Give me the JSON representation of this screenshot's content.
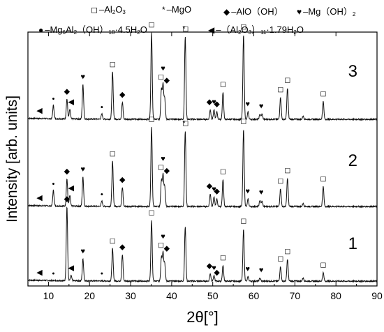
{
  "legend": {
    "al2o3": {
      "symbol": "◻",
      "text_a": "–Al",
      "sub_a": "2",
      "text_b": "O",
      "sub_b": "3"
    },
    "mgo": {
      "symbol": "*",
      "text": "–MgO"
    },
    "alooh": {
      "symbol": "◆",
      "text": "–AlO（OH）"
    },
    "mgoh2": {
      "symbol": "♥",
      "text": "–Mg（OH）",
      "sub": "2"
    },
    "ldh": {
      "symbol": "●",
      "text_a": "–Mg",
      "sub_a": "6",
      "text_b": "Al",
      "sub_b": "2",
      "text_c": "（OH）",
      "sub_c": "18",
      "text_d": "·4.5H",
      "sub_d": "2",
      "text_e": "O"
    },
    "beta_alumina": {
      "symbol": "◀",
      "text_a": "–（Al",
      "sub_a": "2",
      "text_b": "O",
      "sub_b": "3",
      "text_c": "）",
      "sub_c": "11",
      "text_d": "·1.79H",
      "sub_d": "2",
      "text_e": "O"
    }
  },
  "chart_data": {
    "type": "line",
    "xlabel": "2θ[°]",
    "ylabel": "Intensity [arb. units]",
    "xlim": [
      5,
      90
    ],
    "xticks": [
      10,
      20,
      30,
      40,
      50,
      60,
      70,
      80,
      90
    ],
    "tick_labels": [
      "10",
      "20",
      "30",
      "40",
      "50",
      "60",
      "70",
      "80",
      "90"
    ],
    "series": [
      {
        "name": "3",
        "peaks": [
          [
            11.2,
            0.13
          ],
          [
            14.5,
            0.19
          ],
          [
            15.2,
            0.09
          ],
          [
            18.4,
            0.33
          ],
          [
            23.0,
            0.05
          ],
          [
            25.6,
            0.45
          ],
          [
            28.0,
            0.16
          ],
          [
            35.1,
            0.83
          ],
          [
            37.5,
            0.29
          ],
          [
            37.9,
            0.33
          ],
          [
            38.3,
            0.2
          ],
          [
            43.3,
            0.79
          ],
          [
            49.4,
            0.09
          ],
          [
            50.3,
            0.09
          ],
          [
            51.0,
            0.07
          ],
          [
            52.5,
            0.26
          ],
          [
            57.5,
            0.81
          ],
          [
            58.6,
            0.07
          ],
          [
            61.5,
            0.05
          ],
          [
            62.0,
            0.05
          ],
          [
            66.5,
            0.21
          ],
          [
            68.2,
            0.3
          ],
          [
            72.0,
            0.03
          ],
          [
            76.9,
            0.17
          ]
        ]
      },
      {
        "name": "2",
        "peaks": [
          [
            11.2,
            0.15
          ],
          [
            14.5,
            0.26
          ],
          [
            15.2,
            0.1
          ],
          [
            18.4,
            0.28
          ],
          [
            23.0,
            0.05
          ],
          [
            25.6,
            0.43
          ],
          [
            28.0,
            0.18
          ],
          [
            35.1,
            0.76
          ],
          [
            37.5,
            0.25
          ],
          [
            37.9,
            0.3
          ],
          [
            38.3,
            0.19
          ],
          [
            43.3,
            0.72
          ],
          [
            49.4,
            0.12
          ],
          [
            50.3,
            0.09
          ],
          [
            51.0,
            0.07
          ],
          [
            52.5,
            0.26
          ],
          [
            57.5,
            0.74
          ],
          [
            58.6,
            0.07
          ],
          [
            61.5,
            0.06
          ],
          [
            62.0,
            0.05
          ],
          [
            66.5,
            0.17
          ],
          [
            68.2,
            0.27
          ],
          [
            72.0,
            0.03
          ],
          [
            76.9,
            0.19
          ]
        ]
      },
      {
        "name": "1",
        "peaks": [
          [
            14.5,
            0.71
          ],
          [
            15.5,
            0.05
          ],
          [
            18.4,
            0.21
          ],
          [
            25.6,
            0.31
          ],
          [
            28.0,
            0.25
          ],
          [
            35.1,
            0.58
          ],
          [
            37.5,
            0.23
          ],
          [
            37.9,
            0.27
          ],
          [
            38.3,
            0.17
          ],
          [
            43.3,
            0.52
          ],
          [
            49.4,
            0.07
          ],
          [
            50.3,
            0.05
          ],
          [
            52.5,
            0.15
          ],
          [
            57.5,
            0.5
          ],
          [
            58.6,
            0.04
          ],
          [
            61.5,
            0.03
          ],
          [
            66.5,
            0.14
          ],
          [
            68.2,
            0.21
          ],
          [
            72.0,
            0.03
          ],
          [
            76.9,
            0.08
          ]
        ]
      }
    ],
    "markers": [
      {
        "curve": "3",
        "items": [
          [
            "◀",
            7.8
          ],
          [
            "●",
            11.2
          ],
          [
            "◆",
            14.5
          ],
          [
            "◀",
            15.5
          ],
          [
            "♥",
            18.4
          ],
          [
            "●",
            23.0
          ],
          [
            "◻",
            25.6
          ],
          [
            "◆",
            28.0
          ],
          [
            "◻",
            35.1
          ],
          [
            "◻",
            37.4
          ],
          [
            "♥",
            37.9
          ],
          [
            "◆",
            38.8
          ],
          [
            "*",
            43.0
          ],
          [
            "◻",
            43.4
          ],
          [
            "◆",
            49.2
          ],
          [
            "♥",
            50.3
          ],
          [
            "◆",
            51.0
          ],
          [
            "◻",
            52.5
          ],
          [
            "◻",
            57.5
          ],
          [
            "♥",
            58.5
          ],
          [
            "♥",
            61.8
          ],
          [
            "◻",
            66.5
          ],
          [
            "◻",
            68.2
          ],
          [
            "◻",
            76.9
          ]
        ]
      },
      {
        "curve": "2",
        "items": [
          [
            "◀",
            7.8
          ],
          [
            "●",
            11.2
          ],
          [
            "◆",
            14.5
          ],
          [
            "◀",
            15.5
          ],
          [
            "♥",
            18.4
          ],
          [
            "●",
            23.0
          ],
          [
            "◻",
            25.6
          ],
          [
            "◆",
            28.0
          ],
          [
            "◻",
            35.1
          ],
          [
            "◻",
            37.4
          ],
          [
            "♥",
            37.9
          ],
          [
            "◆",
            38.8
          ],
          [
            "*",
            43.0
          ],
          [
            "◻",
            43.4
          ],
          [
            "◆",
            49.2
          ],
          [
            "♥",
            50.3
          ],
          [
            "◆",
            51.0
          ],
          [
            "◻",
            52.5
          ],
          [
            "◻",
            57.5
          ],
          [
            "♥",
            58.5
          ],
          [
            "♥",
            61.8
          ],
          [
            "◻",
            66.5
          ],
          [
            "◻",
            68.2
          ],
          [
            "◻",
            76.9
          ]
        ]
      },
      {
        "curve": "1",
        "items": [
          [
            "◀",
            7.8
          ],
          [
            "●",
            11.2
          ],
          [
            "◆",
            14.5
          ],
          [
            "◀",
            15.5
          ],
          [
            "♥",
            18.4
          ],
          [
            "●",
            23.0
          ],
          [
            "◻",
            25.6
          ],
          [
            "◆",
            28.0
          ],
          [
            "◻",
            35.1
          ],
          [
            "◻",
            37.4
          ],
          [
            "♥",
            37.9
          ],
          [
            "◆",
            38.8
          ],
          [
            "◆",
            49.2
          ],
          [
            "♥",
            50.3
          ],
          [
            "◆",
            51.0
          ],
          [
            "◻",
            52.5
          ],
          [
            "◻",
            57.5
          ],
          [
            "♥",
            58.5
          ],
          [
            "♥",
            61.8
          ],
          [
            "◻",
            66.5
          ],
          [
            "◻",
            68.2
          ],
          [
            "◻",
            76.9
          ]
        ]
      }
    ]
  }
}
